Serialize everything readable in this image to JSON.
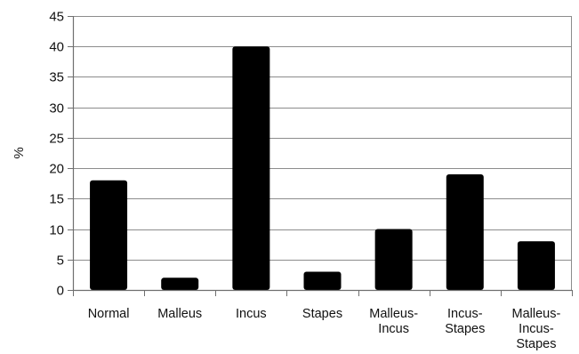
{
  "chart_data": {
    "type": "bar",
    "categories": [
      [
        "Normal"
      ],
      [
        "Malleus"
      ],
      [
        "Incus"
      ],
      [
        "Stapes"
      ],
      [
        "Malleus-",
        "Incus"
      ],
      [
        "Incus-",
        "Stapes"
      ],
      [
        "Malleus-",
        "Incus-",
        "Stapes"
      ]
    ],
    "values": [
      18,
      2,
      40,
      3,
      10,
      19,
      8
    ],
    "ylabel": "%",
    "xlabel": "",
    "title": "",
    "ylim": [
      0,
      45
    ],
    "yticks": [
      0,
      5,
      10,
      15,
      20,
      25,
      30,
      35,
      40,
      45
    ],
    "grid": "horizontal",
    "bar_color": "#000000",
    "grid_color": "#8c8c8c",
    "axis_color": "#6f6f6f"
  }
}
